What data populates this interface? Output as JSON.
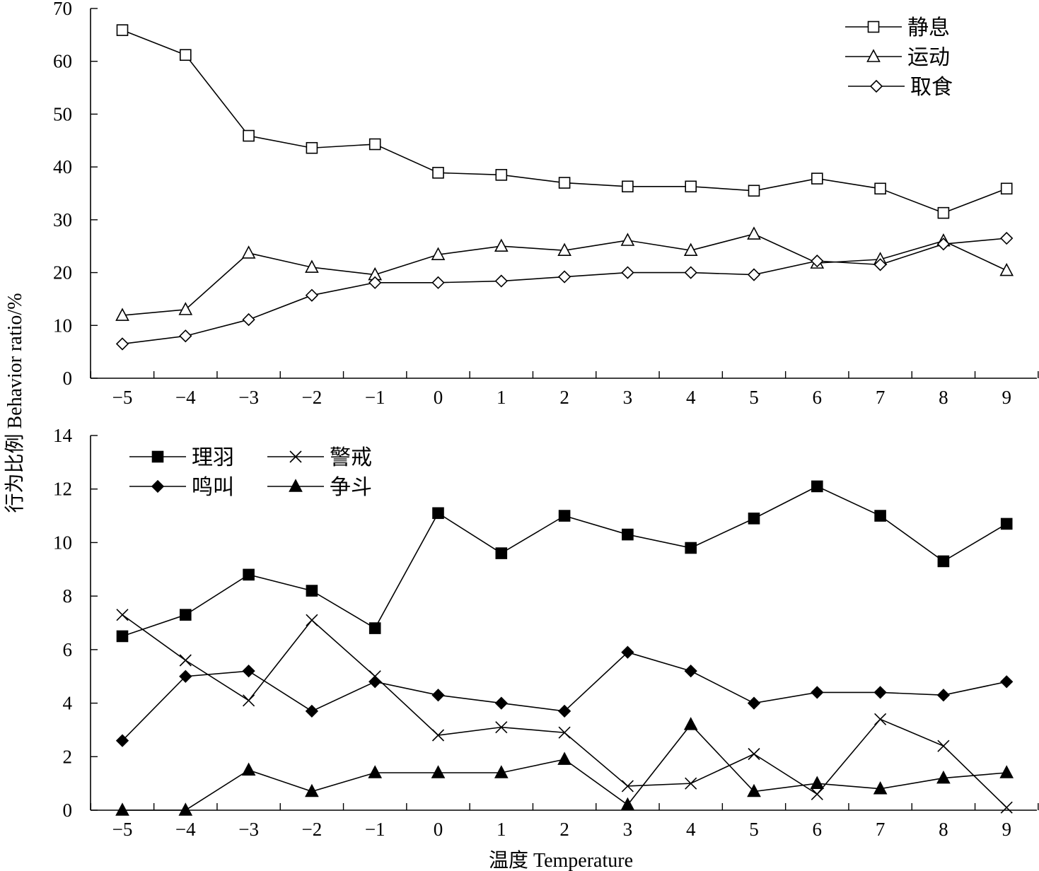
{
  "ylabel": "行为比例 Behavior ratio/%",
  "xlabel": "温度 Temperature",
  "chart_data": [
    {
      "type": "line",
      "categories": [
        "−5",
        "−4",
        "−3",
        "−2",
        "−1",
        "0",
        "1",
        "2",
        "3",
        "4",
        "5",
        "6",
        "7",
        "8",
        "9"
      ],
      "x": [
        -5,
        -4,
        -3,
        -2,
        -1,
        0,
        1,
        2,
        3,
        4,
        5,
        6,
        7,
        8,
        9
      ],
      "ylim": [
        0,
        70
      ],
      "yticks": [
        0,
        10,
        20,
        30,
        40,
        50,
        60,
        70
      ],
      "legend_position": "top-right",
      "grid": false,
      "series": [
        {
          "name": "静息",
          "marker": "open-square",
          "values": [
            65.9,
            61.2,
            45.9,
            43.6,
            44.3,
            38.9,
            38.5,
            37.0,
            36.3,
            36.3,
            35.5,
            37.8,
            35.9,
            31.3,
            35.9
          ]
        },
        {
          "name": "运动",
          "marker": "open-triangle",
          "values": [
            11.9,
            13.0,
            23.7,
            21.0,
            19.6,
            23.4,
            25.0,
            24.2,
            26.1,
            24.2,
            27.3,
            21.8,
            22.5,
            26.0,
            20.4
          ]
        },
        {
          "name": "取食",
          "marker": "open-diamond",
          "values": [
            6.5,
            8.0,
            11.1,
            15.7,
            18.1,
            18.1,
            18.4,
            19.2,
            20.0,
            20.0,
            19.6,
            22.2,
            21.5,
            25.4,
            26.5
          ]
        }
      ]
    },
    {
      "type": "line",
      "categories": [
        "−5",
        "−4",
        "−3",
        "−2",
        "−1",
        "0",
        "1",
        "2",
        "3",
        "4",
        "5",
        "6",
        "7",
        "8",
        "9"
      ],
      "x": [
        -5,
        -4,
        -3,
        -2,
        -1,
        0,
        1,
        2,
        3,
        4,
        5,
        6,
        7,
        8,
        9
      ],
      "ylim": [
        0,
        14
      ],
      "yticks": [
        0,
        2,
        4,
        6,
        8,
        10,
        12,
        14
      ],
      "legend_position": "top-left",
      "grid": false,
      "series": [
        {
          "name": "理羽",
          "marker": "filled-square",
          "values": [
            6.5,
            7.3,
            8.8,
            8.2,
            6.8,
            11.1,
            9.6,
            11.0,
            10.3,
            9.8,
            10.9,
            12.1,
            11.0,
            9.3,
            10.7
          ]
        },
        {
          "name": "警戒",
          "marker": "x",
          "values": [
            7.3,
            5.6,
            4.1,
            7.1,
            5.0,
            2.8,
            3.1,
            2.9,
            0.9,
            1.0,
            2.1,
            0.6,
            3.4,
            2.4,
            0.1
          ]
        },
        {
          "name": "鸣叫",
          "marker": "filled-diamond",
          "values": [
            2.6,
            5.0,
            5.2,
            3.7,
            4.8,
            4.3,
            4.0,
            3.7,
            5.9,
            5.2,
            4.0,
            4.4,
            4.4,
            4.3,
            4.8
          ]
        },
        {
          "name": "争斗",
          "marker": "filled-triangle",
          "values": [
            0.0,
            0.0,
            1.5,
            0.7,
            1.4,
            1.4,
            1.4,
            1.9,
            0.2,
            3.2,
            0.7,
            1.0,
            0.8,
            1.2,
            1.4
          ]
        }
      ]
    }
  ]
}
